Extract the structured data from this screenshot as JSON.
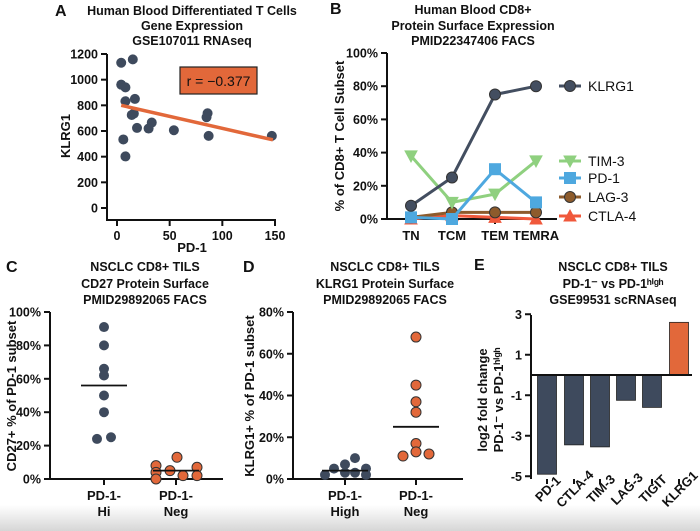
{
  "colors": {
    "dark": "#3e4a5d",
    "orange": "#e2683a",
    "klrg1": "#434e60",
    "tim3": "#8fd07f",
    "pd1": "#4ea8df",
    "lag3": "#8d5b2c",
    "ctla4": "#f0583b"
  },
  "chart_data": [
    {
      "panel": "A",
      "type": "scatter",
      "title": [
        "Human Blood Differentiated T Cells",
        "Gene Expression",
        "GSE107011 RNAseq"
      ],
      "xlabel": "PD-1",
      "ylabel": "KLRG1",
      "xlim": [
        0,
        150
      ],
      "ylim": [
        0,
        1200
      ],
      "xticks": [
        0,
        50,
        100,
        150
      ],
      "yticks": [
        0,
        200,
        400,
        600,
        800,
        1000,
        1200
      ],
      "annotation": "r = −0.377",
      "points": [
        [
          4,
          1132
        ],
        [
          15,
          1158
        ],
        [
          4,
          961
        ],
        [
          8,
          940
        ],
        [
          8,
          832
        ],
        [
          17,
          850
        ],
        [
          14,
          725
        ],
        [
          16,
          736
        ],
        [
          19,
          624
        ],
        [
          30,
          619
        ],
        [
          33,
          666
        ],
        [
          6,
          534
        ],
        [
          8,
          402
        ],
        [
          54,
          606
        ],
        [
          86,
          738
        ],
        [
          85,
          707
        ],
        [
          87,
          562
        ],
        [
          147,
          562
        ]
      ],
      "fit_line": [
        [
          4,
          800
        ],
        [
          148,
          531
        ]
      ]
    },
    {
      "panel": "B",
      "type": "line",
      "title": [
        "Human Blood CD8+",
        "Protein Surface Expression",
        "PMID22347406 FACS"
      ],
      "ylabel": "% of CD8+ T Cell Subset",
      "categories": [
        "TN",
        "TCM",
        "TEM",
        "TEMRA"
      ],
      "ylim": [
        0,
        100
      ],
      "yticks": [
        "0%",
        "20%",
        "40%",
        "60%",
        "80%",
        "100%"
      ],
      "legend": "right",
      "series": [
        {
          "name": "KLRG1",
          "marker": "circle",
          "values": [
            8,
            25,
            75,
            80
          ]
        },
        {
          "name": "TIM-3",
          "marker": "triangle-down",
          "values": [
            38,
            10,
            15,
            35
          ]
        },
        {
          "name": "PD-1",
          "marker": "square",
          "values": [
            1,
            0,
            30,
            10
          ]
        },
        {
          "name": "LAG-3",
          "marker": "circle",
          "values": [
            1,
            4,
            4,
            4
          ]
        },
        {
          "name": "CTLA-4",
          "marker": "triangle-up",
          "values": [
            0,
            2,
            1,
            0
          ]
        }
      ]
    },
    {
      "panel": "C",
      "type": "scatter",
      "title": [
        "NSCLC CD8+ TILS",
        "CD27 Protein Surface",
        "PMID29892065 FACS"
      ],
      "ylabel": "CD27+ % of PD-1 subset",
      "categories": [
        [
          "PD-1-",
          "Hi"
        ],
        [
          "PD-1-",
          "Neg"
        ]
      ],
      "ylim": [
        0,
        100
      ],
      "yticks": [
        "0%",
        "20%",
        "40%",
        "60%",
        "80%",
        "100%"
      ],
      "groups": [
        {
          "values": [
            91,
            80,
            66,
            62,
            50,
            40,
            24,
            25
          ],
          "mean": 56
        },
        {
          "values": [
            8,
            4,
            0,
            5,
            13,
            2,
            7,
            2
          ],
          "mean": 5
        }
      ]
    },
    {
      "panel": "D",
      "type": "scatter",
      "title": [
        "NSCLC CD8+ TILS",
        "KLRG1 Protein Surface",
        "PMID29892065 FACS"
      ],
      "ylabel": "KLRG1+ % of PD-1 subset",
      "categories": [
        [
          "PD-1-",
          "High"
        ],
        [
          "PD-1-",
          "Neg"
        ]
      ],
      "ylim": [
        0,
        80
      ],
      "yticks": [
        "0%",
        "20%",
        "40%",
        "60%",
        "80%"
      ],
      "groups": [
        {
          "values": [
            2,
            5,
            7,
            3,
            10,
            3,
            5,
            2
          ],
          "mean": 4
        },
        {
          "values": [
            68,
            45,
            37,
            32,
            17,
            13,
            11,
            12
          ],
          "mean": 25
        }
      ]
    },
    {
      "panel": "E",
      "type": "bar",
      "title": [
        "NSCLC CD8+ TILS",
        "PD-1⁻ vs PD-1ʰⁱᵍʰ",
        "GSE99531 scRNAseq"
      ],
      "ylabel": [
        "log2 fold change",
        "PD-1⁻ vs PD-1ʰⁱᵍʰ"
      ],
      "categories": [
        "PD-1",
        "CTLA-4",
        "TIM-3",
        "LAG-3",
        "TIGIT",
        "KLRG1"
      ],
      "values": [
        -4.9,
        -3.45,
        -3.55,
        -1.25,
        -1.6,
        2.6
      ],
      "ylim": [
        -5,
        3
      ],
      "yticks": [
        "-5",
        "-3",
        "-1",
        "1",
        "3"
      ]
    }
  ]
}
